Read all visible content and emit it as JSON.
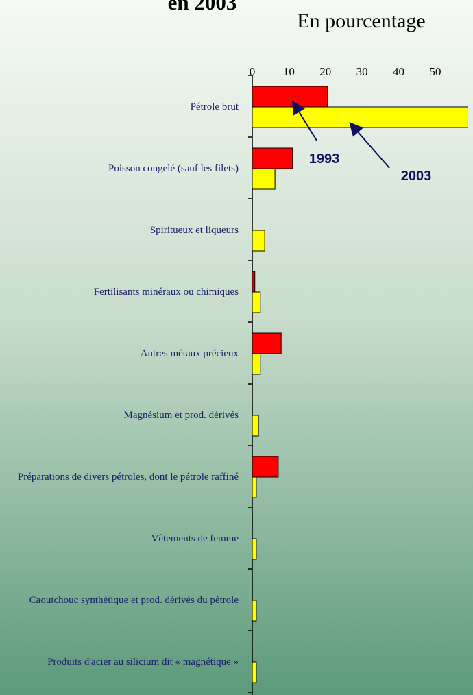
{
  "chart_data": {
    "type": "bar",
    "orientation": "horizontal",
    "title": "en 2003",
    "x_label": "En pourcentage",
    "categories": [
      "Pétrole brut",
      "Poisson congelé (sauf les filets)",
      "Spiritueux et liqueurs",
      "Fertilisants minéraux ou chimiques",
      "Autres métaux précieux",
      "Magnésium et prod. dérivés",
      "Préparations de divers pétroles, dont le pétrole raffiné",
      "Vêtements de femme",
      "Caoutchouc synthétique et prod. dérivés du pétrole",
      "Produits d'acier au silicium dit « magnétique »"
    ],
    "series": [
      {
        "name": "1993",
        "color": "#ff0000",
        "values": [
          20.6,
          11.0,
          null,
          0.7,
          7.9,
          null,
          7.1,
          null,
          null,
          null
        ]
      },
      {
        "name": "2003",
        "color": "#ffff00",
        "values": [
          58.9,
          6.2,
          3.4,
          2.2,
          2.2,
          1.7,
          1.1,
          1.1,
          1.1,
          1.1
        ]
      }
    ],
    "xlim": [
      0,
      59
    ],
    "xticks": [
      0,
      10,
      20,
      30,
      40,
      50
    ],
    "grid": false
  }
}
